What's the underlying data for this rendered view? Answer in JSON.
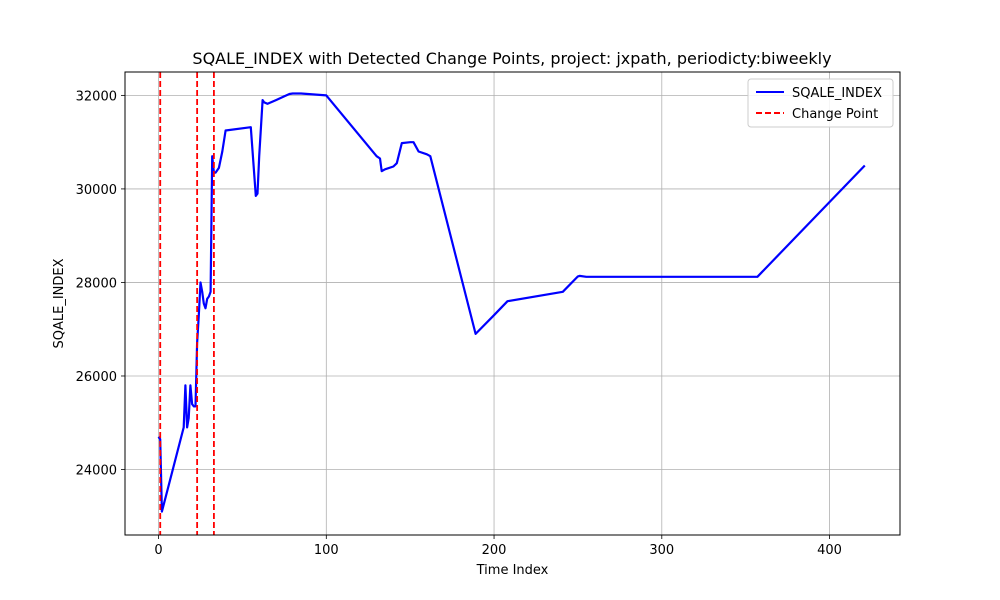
{
  "chart_data": {
    "type": "line",
    "title": "SQALE_INDEX with Detected Change Points, project: jxpath, periodicty:biweekly",
    "xlabel": "Time Index",
    "ylabel": "SQALE_INDEX",
    "xlim": [
      -20,
      442
    ],
    "ylim": [
      22600,
      32500
    ],
    "xticks": [
      0,
      100,
      200,
      300,
      400
    ],
    "yticks": [
      24000,
      26000,
      28000,
      30000,
      32000
    ],
    "grid": true,
    "legend_position": "top-right",
    "series": [
      {
        "name": "SQALE_INDEX",
        "color": "#0000ff",
        "style": "solid",
        "x": [
          0,
          1,
          2,
          15,
          16,
          17,
          18,
          19,
          20,
          21,
          22,
          23,
          24,
          25,
          26,
          27,
          28,
          29,
          30,
          31,
          32,
          33,
          34,
          36,
          38,
          40,
          55,
          58,
          59,
          60,
          62,
          63,
          65,
          70,
          75,
          78,
          80,
          85,
          100,
          130,
          132,
          133,
          135,
          140,
          142,
          145,
          150,
          152,
          155,
          160,
          162,
          189,
          200,
          208,
          241,
          250,
          251,
          255,
          260,
          300,
          357,
          421
        ],
        "y": [
          24700,
          24650,
          23100,
          24900,
          25800,
          24900,
          25100,
          25800,
          25400,
          25350,
          25350,
          26700,
          27300,
          28000,
          27800,
          27550,
          27450,
          27650,
          27700,
          27800,
          30700,
          30350,
          30350,
          30450,
          30800,
          31250,
          31320,
          29850,
          29900,
          30700,
          31900,
          31850,
          31820,
          31900,
          31980,
          32030,
          32040,
          32040,
          32000,
          30700,
          30650,
          30380,
          30420,
          30480,
          30550,
          30980,
          31000,
          31000,
          30800,
          30740,
          30700,
          26900,
          27300,
          27600,
          27800,
          28130,
          28140,
          28120,
          28120,
          28120,
          28120,
          30500
        ]
      }
    ],
    "change_points": {
      "name": "Change Point",
      "color": "#ff0000",
      "style": "dashed",
      "x": [
        1,
        23,
        33
      ]
    }
  }
}
